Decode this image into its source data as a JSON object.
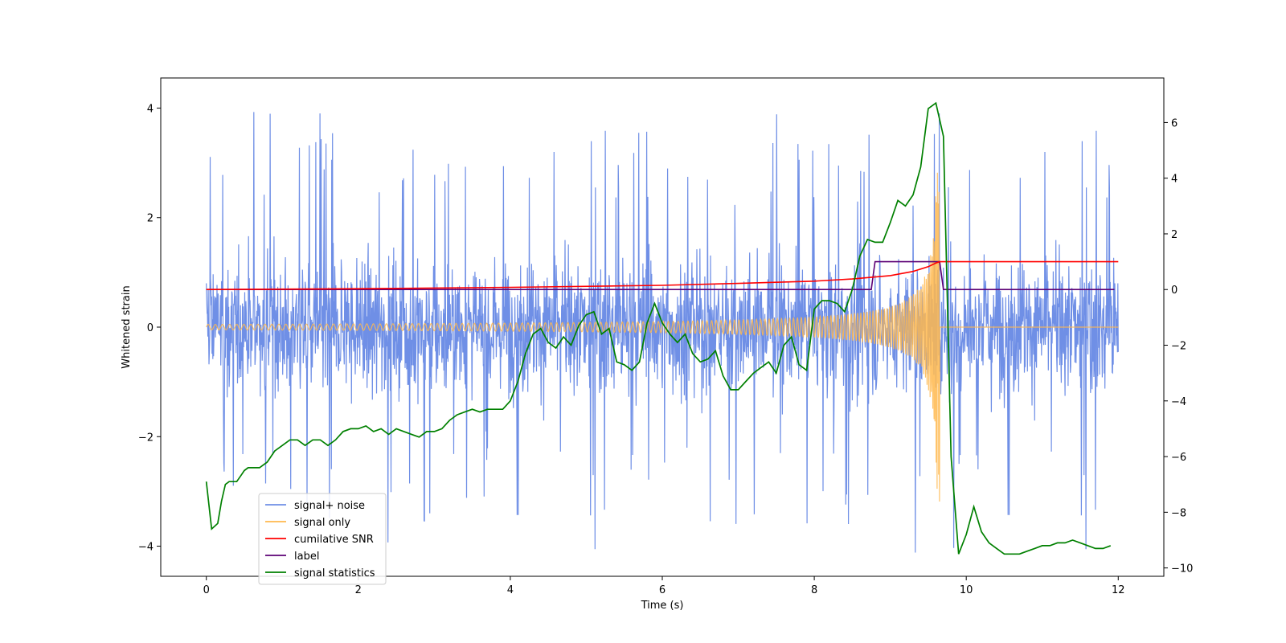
{
  "chart_data": {
    "type": "line",
    "title": "",
    "xlabel": "Time (s)",
    "ylabel": "Whitened strain",
    "y2label": "",
    "xlim": [
      -0.6,
      12.6
    ],
    "ylim": [
      -4.55,
      4.55
    ],
    "y2lim": [
      -10.3,
      7.6
    ],
    "x_ticks": [
      0,
      2,
      4,
      6,
      8,
      10,
      12
    ],
    "y_ticks": [
      -4,
      -2,
      0,
      2,
      4
    ],
    "y2_ticks": [
      -10,
      -8,
      -6,
      -4,
      -2,
      0,
      2,
      4,
      6
    ],
    "grid": false,
    "legend_position": "lower-left",
    "colors": {
      "signal_noise": "#6f8fe6",
      "signal_only": "#ffb84d",
      "cumulative_snr": "#ff0000",
      "label": "#5c0075",
      "signal_statistics": "#008000"
    },
    "series": [
      {
        "name": "signal+ noise",
        "axis": "left",
        "description_points": "dense noise band spanning roughly -2 to +2 with spikes to about +/-4 over 0-12 s",
        "envelope": {
          "x": [
            0,
            12
          ],
          "typical_low": -2.0,
          "typical_high": 2.1,
          "max_spike": 4.15,
          "min_spike": -4.15
        }
      },
      {
        "name": "signal only",
        "axis": "left",
        "chirp": {
          "start": 0.0,
          "merger": 9.65,
          "end": 12.0,
          "initial_amplitude": 0.05,
          "peak_amplitude": 3.2
        }
      },
      {
        "name": "cumilative SNR",
        "axis": "right",
        "x": [
          0,
          2,
          4,
          6,
          7,
          8,
          8.5,
          9.0,
          9.3,
          9.5,
          9.6,
          9.65,
          9.7,
          10,
          12
        ],
        "values": [
          0,
          0.03,
          0.08,
          0.15,
          0.22,
          0.3,
          0.38,
          0.5,
          0.65,
          0.82,
          0.95,
          1.0,
          1.0,
          1.0,
          1.0
        ]
      },
      {
        "name": "label",
        "axis": "right",
        "x": [
          0,
          8.75,
          8.8,
          9.65,
          9.7,
          11.95
        ],
        "values": [
          0,
          0,
          1,
          1,
          0,
          0
        ]
      },
      {
        "name": "signal statistics",
        "axis": "right",
        "x": [
          0,
          0.07,
          0.15,
          0.2,
          0.25,
          0.3,
          0.4,
          0.45,
          0.5,
          0.55,
          0.6,
          0.65,
          0.7,
          0.8,
          0.9,
          1.0,
          1.1,
          1.2,
          1.3,
          1.4,
          1.5,
          1.6,
          1.7,
          1.8,
          1.9,
          2.0,
          2.1,
          2.2,
          2.3,
          2.4,
          2.5,
          2.6,
          2.7,
          2.8,
          2.9,
          3.0,
          3.1,
          3.2,
          3.3,
          3.4,
          3.5,
          3.6,
          3.7,
          3.8,
          3.9,
          4.0,
          4.1,
          4.2,
          4.3,
          4.4,
          4.5,
          4.6,
          4.7,
          4.8,
          4.9,
          5.0,
          5.1,
          5.2,
          5.3,
          5.4,
          5.5,
          5.6,
          5.7,
          5.8,
          5.9,
          6.0,
          6.1,
          6.2,
          6.3,
          6.4,
          6.5,
          6.6,
          6.7,
          6.8,
          6.9,
          7.0,
          7.1,
          7.2,
          7.3,
          7.4,
          7.5,
          7.6,
          7.7,
          7.8,
          7.9,
          8.0,
          8.1,
          8.2,
          8.3,
          8.4,
          8.5,
          8.6,
          8.7,
          8.8,
          8.9,
          9.0,
          9.1,
          9.2,
          9.3,
          9.4,
          9.5,
          9.6,
          9.7,
          9.8,
          9.9,
          10.0,
          10.1,
          10.2,
          10.3,
          10.4,
          10.5,
          10.6,
          10.7,
          10.8,
          10.9,
          11.0,
          11.1,
          11.2,
          11.3,
          11.4,
          11.5,
          11.6,
          11.7,
          11.8,
          11.9
        ],
        "values": [
          -6.9,
          -8.6,
          -8.4,
          -7.6,
          -7.0,
          -6.9,
          -6.9,
          -6.7,
          -6.5,
          -6.4,
          -6.4,
          -6.4,
          -6.4,
          -6.2,
          -5.8,
          -5.6,
          -5.4,
          -5.4,
          -5.6,
          -5.4,
          -5.4,
          -5.6,
          -5.4,
          -5.1,
          -5.0,
          -5.0,
          -4.9,
          -5.1,
          -5.0,
          -5.2,
          -5.0,
          -5.1,
          -5.2,
          -5.3,
          -5.1,
          -5.1,
          -5.0,
          -4.7,
          -4.5,
          -4.4,
          -4.3,
          -4.4,
          -4.3,
          -4.3,
          -4.3,
          -4.0,
          -3.3,
          -2.3,
          -1.6,
          -1.4,
          -1.9,
          -2.1,
          -1.7,
          -2.0,
          -1.3,
          -0.9,
          -0.8,
          -1.6,
          -1.4,
          -2.6,
          -2.7,
          -2.9,
          -2.6,
          -1.2,
          -0.5,
          -1.2,
          -1.6,
          -1.9,
          -1.6,
          -2.3,
          -2.6,
          -2.5,
          -2.2,
          -3.1,
          -3.6,
          -3.6,
          -3.3,
          -3.0,
          -2.8,
          -2.6,
          -3.0,
          -2.0,
          -1.7,
          -2.7,
          -2.9,
          -0.7,
          -0.4,
          -0.4,
          -0.5,
          -0.8,
          0.0,
          1.2,
          1.8,
          1.7,
          1.7,
          2.4,
          3.2,
          3.0,
          3.4,
          4.4,
          6.5,
          6.7,
          5.5,
          -6.0,
          -9.5,
          -8.8,
          -7.8,
          -8.7,
          -9.1,
          -9.3,
          -9.5,
          -9.5,
          -9.5,
          -9.4,
          -9.3,
          -9.2,
          -9.2,
          -9.1,
          -9.1,
          -9.0,
          -9.1,
          -9.2,
          -9.3,
          -9.3,
          -9.2
        ]
      }
    ]
  }
}
